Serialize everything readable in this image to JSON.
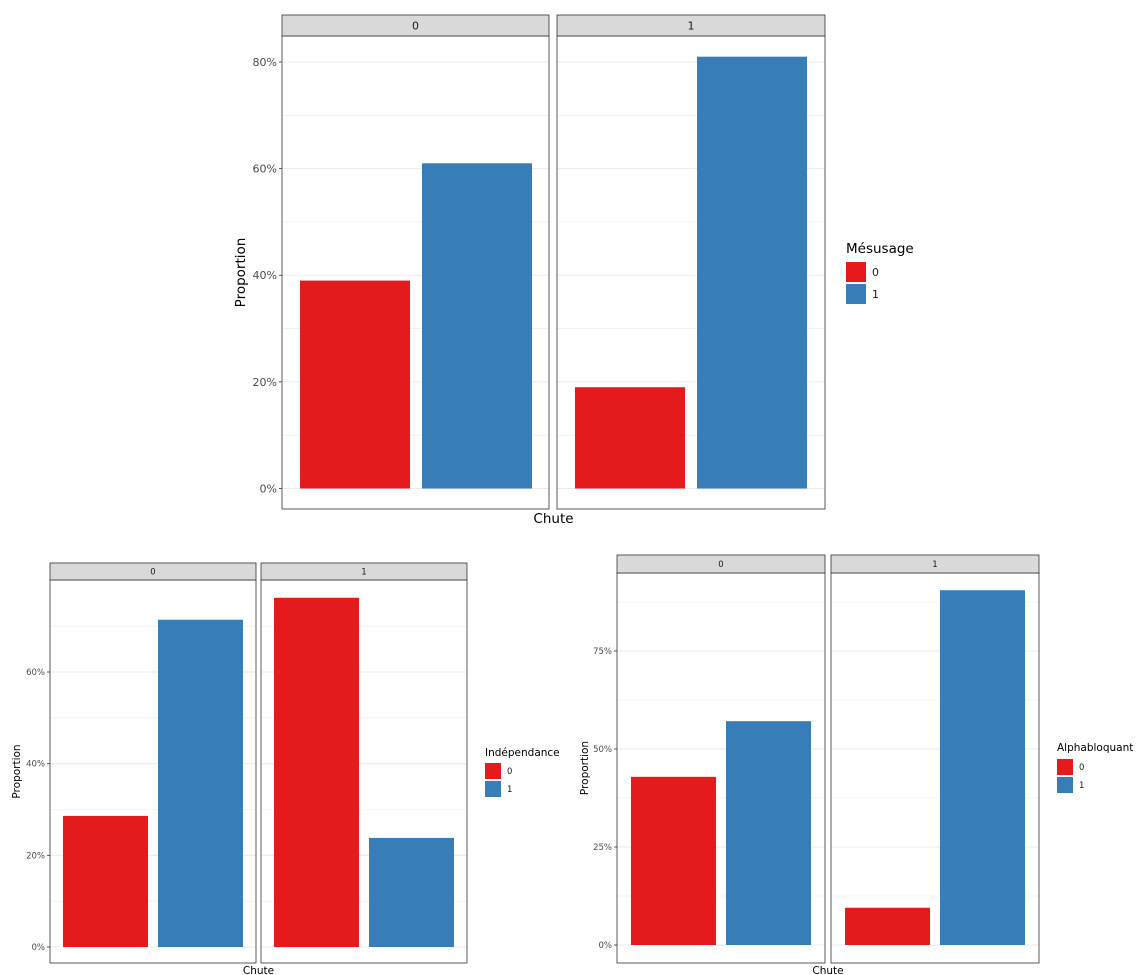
{
  "colors": {
    "red": "#e41a1c",
    "blue": "#377eb8",
    "strip_fill": "#d9d9d9",
    "grid": "#ebebeb",
    "border": "#333333",
    "tick_text": "#4d4d4d"
  },
  "chart_data": [
    {
      "type": "bar",
      "facet_by": "Chute",
      "xlabel": "Chute",
      "ylabel": "Proportion",
      "legend_title": "Mésusage",
      "legend_position": "right",
      "facets": [
        "0",
        "1"
      ],
      "series": [
        {
          "name": "0",
          "color": "#e41a1c",
          "values": [
            0.39,
            0.19
          ]
        },
        {
          "name": "1",
          "color": "#377eb8",
          "values": [
            0.61,
            0.81
          ]
        }
      ],
      "y_ticks": [
        0,
        0.2,
        0.4,
        0.6,
        0.8
      ],
      "y_tick_labels": [
        "0%",
        "20%",
        "40%",
        "60%",
        "80%"
      ],
      "ylim": [
        0,
        0.85
      ],
      "grid": true
    },
    {
      "type": "bar",
      "facet_by": "Chute",
      "xlabel": "Chute",
      "ylabel": "Proportion",
      "legend_title": "Indépendance",
      "legend_position": "right",
      "facets": [
        "0",
        "1"
      ],
      "series": [
        {
          "name": "0",
          "color": "#e41a1c",
          "values": [
            0.286,
            0.762
          ]
        },
        {
          "name": "1",
          "color": "#377eb8",
          "values": [
            0.714,
            0.238
          ]
        }
      ],
      "y_ticks": [
        0,
        0.2,
        0.4,
        0.6
      ],
      "y_tick_labels": [
        "0%",
        "20%",
        "40%",
        "60%"
      ],
      "ylim": [
        0,
        0.8
      ],
      "grid": true
    },
    {
      "type": "bar",
      "facet_by": "Chute",
      "xlabel": "Chute",
      "ylabel": "Proportion",
      "legend_title": "Alphabloquant",
      "legend_position": "right",
      "facets": [
        "0",
        "1"
      ],
      "series": [
        {
          "name": "0",
          "color": "#e41a1c",
          "values": [
            0.429,
            0.095
          ]
        },
        {
          "name": "1",
          "color": "#377eb8",
          "values": [
            0.571,
            0.905
          ]
        }
      ],
      "y_ticks": [
        0,
        0.25,
        0.5,
        0.75
      ],
      "y_tick_labels": [
        "0%",
        "25%",
        "50%",
        "75%"
      ],
      "ylim": [
        0,
        0.95
      ],
      "grid": true
    }
  ]
}
